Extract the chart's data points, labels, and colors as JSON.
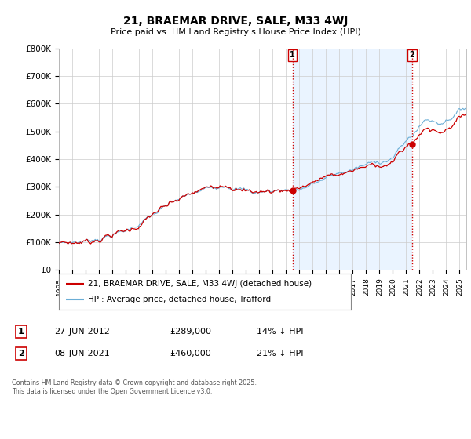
{
  "title": "21, BRAEMAR DRIVE, SALE, M33 4WJ",
  "subtitle": "Price paid vs. HM Land Registry's House Price Index (HPI)",
  "ylim": [
    0,
    800000
  ],
  "hpi_color": "#6baed6",
  "hpi_fill_color": "#ddeeff",
  "price_color": "#cc0000",
  "vline_color": "#cc0000",
  "marker1_year": 2012.49,
  "marker2_year": 2021.44,
  "sale1_price": 289000,
  "sale2_price": 460000,
  "legend_label_price": "21, BRAEMAR DRIVE, SALE, M33 4WJ (detached house)",
  "legend_label_hpi": "HPI: Average price, detached house, Trafford",
  "annotation1_num": "1",
  "annotation1_date": "27-JUN-2012",
  "annotation1_price": "£289,000",
  "annotation1_pct": "14% ↓ HPI",
  "annotation2_num": "2",
  "annotation2_date": "08-JUN-2021",
  "annotation2_price": "£460,000",
  "annotation2_pct": "21% ↓ HPI",
  "footer": "Contains HM Land Registry data © Crown copyright and database right 2025.\nThis data is licensed under the Open Government Licence v3.0.",
  "background_color": "#ffffff",
  "grid_color": "#cccccc",
  "xlim_left": 1995,
  "xlim_right": 2025.5
}
